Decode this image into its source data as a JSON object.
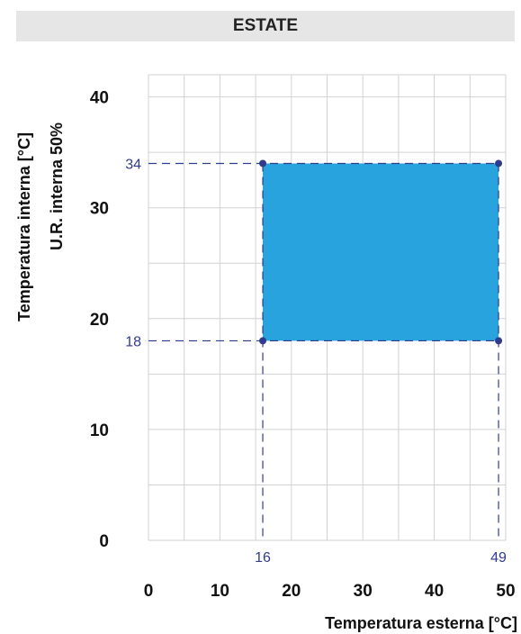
{
  "header": {
    "title": "ESTATE"
  },
  "chart_data": {
    "type": "area",
    "title": "ESTATE",
    "xlabel": "Temperatura esterna [°C]",
    "ylabel": "Temperatura interna [°C]",
    "ylabel_sub": "U.R. interna 50%",
    "xlim": [
      0,
      50
    ],
    "ylim": [
      0,
      42
    ],
    "x_ticks": [
      "0",
      "10",
      "20",
      "30",
      "40",
      "50"
    ],
    "y_ticks": [
      "0",
      "10",
      "20",
      "30",
      "40"
    ],
    "grid": true,
    "region": {
      "x_min": 16,
      "x_max": 49,
      "y_min": 18,
      "y_max": 34,
      "x_min_label": "16",
      "x_max_label": "49",
      "y_min_label": "18",
      "y_max_label": "34",
      "fill_color": "#29a3de"
    },
    "colors": {
      "grid": "#d2d2d2",
      "reference": "#2f3b8c"
    }
  }
}
